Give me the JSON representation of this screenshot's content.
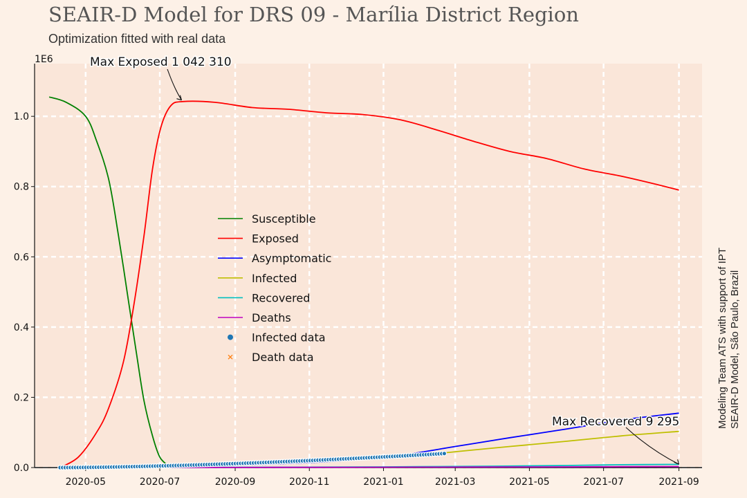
{
  "chart_data": {
    "type": "line",
    "title": "SEAIR-D Model for DRS 09 - Marília District Region",
    "subtitle": "Optimization fitted with real data",
    "credit": [
      "Modeling Team ATS with support of IPT",
      "SEAIR-D Model, São Paulo, Brazil"
    ],
    "y_multiplier_label": "1E6",
    "ylim": [
      0,
      1.15
    ],
    "y_ticks": [
      "0.0",
      "0.2",
      "0.4",
      "0.6",
      "0.8",
      "1.0"
    ],
    "x_range": [
      "2020-03-20",
      "2021-09-20"
    ],
    "x_ticks": [
      "2020-05",
      "2020-07",
      "2020-09",
      "2020-11",
      "2021-01",
      "2021-03",
      "2021-05",
      "2021-07",
      "2021-09"
    ],
    "grid": true,
    "legend_position": "center-left",
    "series": [
      {
        "name": "Susceptible",
        "color": "#008000",
        "x": [
          "2020-04-01",
          "2020-04-15",
          "2020-05-01",
          "2020-05-10",
          "2020-05-20",
          "2020-05-28",
          "2020-06-05",
          "2020-06-12",
          "2020-06-18",
          "2020-06-25",
          "2020-07-01",
          "2020-07-08"
        ],
        "values": [
          1.055,
          1.04,
          1.0,
          0.93,
          0.82,
          0.66,
          0.48,
          0.32,
          0.19,
          0.09,
          0.03,
          0.005
        ]
      },
      {
        "name": "Exposed",
        "color": "#ff0000",
        "x": [
          "2020-04-10",
          "2020-04-25",
          "2020-05-10",
          "2020-05-20",
          "2020-06-01",
          "2020-06-10",
          "2020-06-18",
          "2020-06-25",
          "2020-07-02",
          "2020-07-10",
          "2020-07-20",
          "2020-08-15",
          "2020-09-15",
          "2020-10-15",
          "2020-11-15",
          "2020-12-15",
          "2021-01-15",
          "2021-02-15",
          "2021-03-15",
          "2021-04-15",
          "2021-05-15",
          "2021-06-15",
          "2021-07-15",
          "2021-08-15",
          "2021-09-01"
        ],
        "values": [
          0.0,
          0.03,
          0.1,
          0.17,
          0.3,
          0.47,
          0.66,
          0.85,
          0.97,
          1.03,
          1.042,
          1.04,
          1.025,
          1.02,
          1.01,
          1.005,
          0.99,
          0.96,
          0.93,
          0.9,
          0.88,
          0.85,
          0.83,
          0.805,
          0.79
        ]
      },
      {
        "name": "Asymptomatic",
        "color": "#0000ff",
        "x": [
          "2020-04-10",
          "2020-08-01",
          "2020-10-01",
          "2020-12-01",
          "2021-01-15",
          "2021-03-01",
          "2021-04-15",
          "2021-06-01",
          "2021-07-15",
          "2021-09-01"
        ],
        "values": [
          0.0,
          0.004,
          0.01,
          0.02,
          0.035,
          0.06,
          0.085,
          0.11,
          0.135,
          0.155
        ]
      },
      {
        "name": "Infected",
        "color": "#bfbf00",
        "x": [
          "2020-04-10",
          "2020-08-01",
          "2020-10-01",
          "2020-12-01",
          "2021-01-15",
          "2021-03-01",
          "2021-04-15",
          "2021-06-01",
          "2021-07-15",
          "2021-09-01"
        ],
        "values": [
          0.0,
          0.005,
          0.012,
          0.022,
          0.03,
          0.045,
          0.06,
          0.075,
          0.09,
          0.103
        ]
      },
      {
        "name": "Recovered",
        "color": "#00bfbf",
        "x": [
          "2020-04-10",
          "2020-10-01",
          "2021-01-01",
          "2021-04-01",
          "2021-06-01",
          "2021-07-15",
          "2021-09-01"
        ],
        "values": [
          0.0,
          0.001,
          0.002,
          0.004,
          0.006,
          0.008,
          0.009
        ]
      },
      {
        "name": "Deaths",
        "color": "#bf00bf",
        "x": [
          "2020-04-10",
          "2020-10-01",
          "2021-01-01",
          "2021-04-01",
          "2021-06-01",
          "2021-07-15",
          "2021-09-01"
        ],
        "values": [
          0.0,
          0.0005,
          0.001,
          0.0015,
          0.002,
          0.0025,
          0.003
        ]
      },
      {
        "name": "Infected data",
        "color": "#1f77b4",
        "marker": "circle",
        "x_start": "2020-04-10",
        "x_end": "2021-02-20",
        "values_start": 0.0,
        "values_end": 0.04
      },
      {
        "name": "Death data",
        "color": "#ff7f0e",
        "marker": "x",
        "x_start": "2020-04-10",
        "x_end": "2021-02-20",
        "values_start": 0.0,
        "values_end": 0.001
      }
    ],
    "annotations": [
      {
        "text": "Max Exposed 1 042 310",
        "x": "2020-07-20",
        "y": 1.04231
      },
      {
        "text": "Max Recovered 9 295",
        "x": "2021-09-01",
        "y": 0.009295
      }
    ]
  }
}
